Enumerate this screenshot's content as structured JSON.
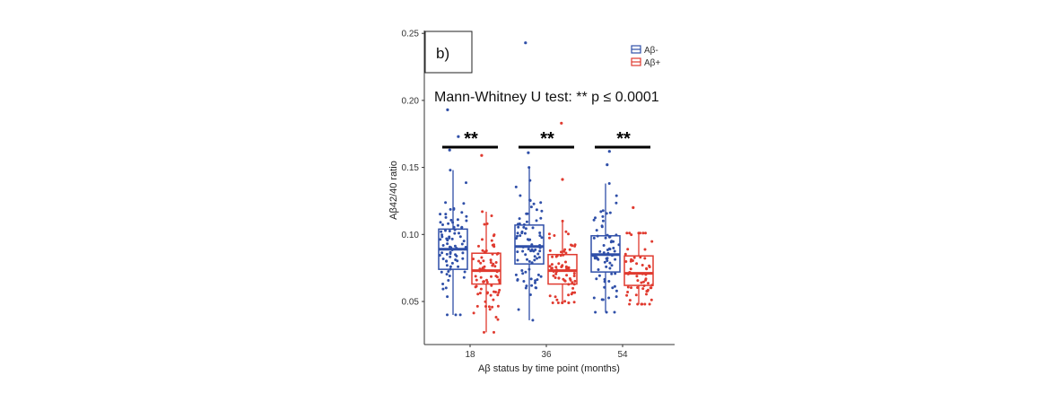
{
  "panel_label": "b)",
  "annotation": "Mann-Whitney U test: ** p ≤ 0.0001",
  "significance_marker": "**",
  "colors": {
    "neg": "#2f4fa8",
    "pos": "#e03a2f"
  },
  "chart_data": {
    "type": "box",
    "title": "",
    "xlabel": "Aβ status by time point (months)",
    "ylabel": "Aβ42/40 ratio",
    "ylim": [
      0.023,
      0.253
    ],
    "yticks": [
      0.05,
      0.1,
      0.15,
      0.2,
      0.25
    ],
    "ytick_labels": [
      "0.05",
      "0.10",
      "0.15",
      "0.20",
      "0.25"
    ],
    "categories": [
      "18",
      "36",
      "54"
    ],
    "legend": {
      "position": "top-right",
      "entries": [
        "Aβ-",
        "Aβ+"
      ]
    },
    "series": [
      {
        "name": "Aβ-",
        "color": "#2f4fa8",
        "boxes": [
          {
            "x": "18",
            "whislo": 0.04,
            "q1": 0.074,
            "med": 0.089,
            "q3": 0.104,
            "whishi": 0.148,
            "fliers": [
              0.193,
              0.163,
              0.173
            ],
            "n": 80
          },
          {
            "x": "36",
            "whislo": 0.036,
            "q1": 0.078,
            "med": 0.091,
            "q3": 0.107,
            "whishi": 0.15,
            "fliers": [
              0.243,
              0.161
            ],
            "n": 80
          },
          {
            "x": "54",
            "whislo": 0.042,
            "q1": 0.072,
            "med": 0.085,
            "q3": 0.099,
            "whishi": 0.138,
            "fliers": [
              0.162,
              0.152
            ],
            "n": 70
          }
        ]
      },
      {
        "name": "Aβ+",
        "color": "#e03a2f",
        "boxes": [
          {
            "x": "18",
            "whislo": 0.027,
            "q1": 0.063,
            "med": 0.073,
            "q3": 0.086,
            "whishi": 0.117,
            "fliers": [
              0.159
            ],
            "n": 75
          },
          {
            "x": "36",
            "whislo": 0.049,
            "q1": 0.063,
            "med": 0.073,
            "q3": 0.085,
            "whishi": 0.11,
            "fliers": [
              0.183,
              0.141
            ],
            "n": 70
          },
          {
            "x": "54",
            "whislo": 0.048,
            "q1": 0.062,
            "med": 0.071,
            "q3": 0.084,
            "whishi": 0.101,
            "fliers": [
              0.12
            ],
            "n": 60
          }
        ]
      }
    ],
    "significance": [
      {
        "x": "18",
        "label": "**"
      },
      {
        "x": "36",
        "label": "**"
      },
      {
        "x": "54",
        "label": "**"
      }
    ]
  }
}
